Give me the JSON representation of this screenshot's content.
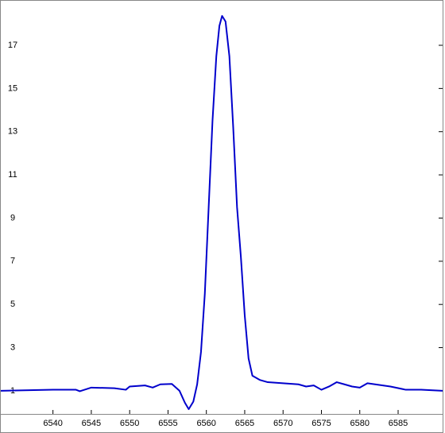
{
  "chart_data": {
    "type": "line",
    "x": [
      6533.2,
      6540,
      6543,
      6543.5,
      6545,
      6548,
      6549.5,
      6550,
      6552,
      6553,
      6554,
      6555.5,
      6556.5,
      6557.2,
      6557.7,
      6558.3,
      6558.8,
      6559.3,
      6559.8,
      6560.3,
      6560.8,
      6561.3,
      6561.7,
      6562.05,
      6562.5,
      6563,
      6563.5,
      6564,
      6564.5,
      6565,
      6565.5,
      6566,
      6567,
      6568,
      6570,
      6572,
      6573,
      6574,
      6575,
      6576,
      6577,
      6578,
      6579,
      6580,
      6581,
      6582,
      6584,
      6586,
      6588,
      6590.8
    ],
    "series": [
      {
        "color": "#0000cc",
        "values": [
          1.0,
          1.05,
          1.05,
          0.98,
          1.15,
          1.12,
          1.05,
          1.2,
          1.25,
          1.15,
          1.3,
          1.32,
          1.0,
          0.45,
          0.15,
          0.5,
          1.3,
          2.8,
          5.5,
          9.5,
          13.5,
          16.5,
          17.9,
          18.36,
          18.1,
          16.5,
          13.2,
          9.5,
          7.2,
          4.5,
          2.5,
          1.7,
          1.5,
          1.4,
          1.35,
          1.3,
          1.2,
          1.25,
          1.05,
          1.2,
          1.4,
          1.3,
          1.2,
          1.15,
          1.35,
          1.3,
          1.2,
          1.05,
          1.05,
          1.0
        ]
      }
    ],
    "xlim": [
      6533.2,
      6590.8
    ],
    "ylim": [
      -0.07,
      19.06
    ],
    "xticks": [
      6540,
      6545,
      6550,
      6555,
      6560,
      6565,
      6570,
      6575,
      6580,
      6585
    ],
    "yticks": [
      1,
      3,
      5,
      7,
      9,
      11,
      13,
      15,
      17
    ]
  }
}
